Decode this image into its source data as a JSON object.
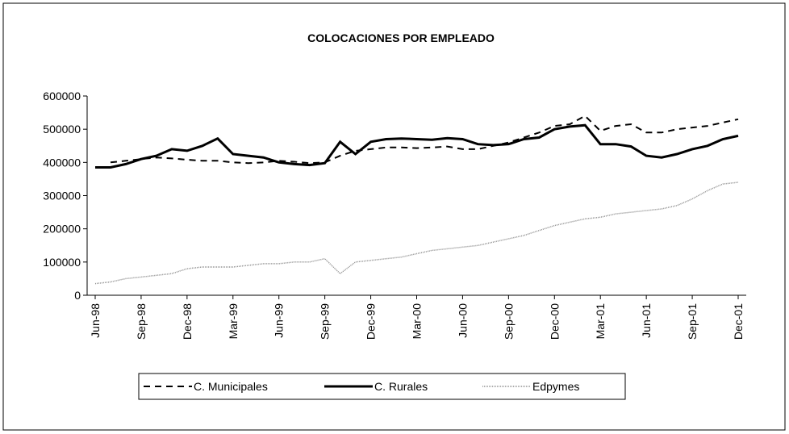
{
  "chart_data": {
    "type": "line",
    "title": "COLOCACIONES POR EMPLEADO",
    "categories": [
      "Jun-98",
      null,
      null,
      "Sep-98",
      null,
      null,
      "Dec-98",
      null,
      null,
      "Mar-99",
      null,
      null,
      "Jun-99",
      null,
      null,
      "Sep-99",
      null,
      null,
      "Dec-99",
      null,
      null,
      "Mar-00",
      null,
      null,
      "Jun-00",
      null,
      null,
      "Sep-00",
      null,
      null,
      "Dec-00",
      null,
      null,
      "Mar-01",
      null,
      null,
      "Jun-01",
      null,
      null,
      "Sep-01",
      null,
      null,
      "Dec-01"
    ],
    "series": [
      {
        "name": "C. Municipales",
        "color": "#000000",
        "style": "dashed",
        "values": [
          null,
          400000,
          405000,
          410000,
          415000,
          412000,
          408000,
          405000,
          405000,
          400000,
          398000,
          400000,
          405000,
          402000,
          398000,
          400000,
          420000,
          435000,
          440000,
          445000,
          445000,
          443000,
          445000,
          448000,
          440000,
          440000,
          450000,
          460000,
          475000,
          490000,
          510000,
          515000,
          540000,
          495000,
          510000,
          515000,
          490000,
          490000,
          500000,
          505000,
          510000,
          520000,
          530000
        ]
      },
      {
        "name": "C. Rurales",
        "color": "#000000",
        "style": "solid",
        "values": [
          385000,
          385000,
          395000,
          410000,
          420000,
          440000,
          435000,
          450000,
          472000,
          425000,
          420000,
          415000,
          400000,
          395000,
          392000,
          398000,
          462000,
          425000,
          462000,
          470000,
          472000,
          470000,
          468000,
          473000,
          470000,
          455000,
          452000,
          455000,
          470000,
          475000,
          500000,
          508000,
          512000,
          455000,
          455000,
          448000,
          420000,
          415000,
          425000,
          440000,
          450000,
          470000,
          480000
        ]
      },
      {
        "name": "Edpymes",
        "color": "#909090",
        "style": "dotted",
        "values": [
          35000,
          40000,
          50000,
          55000,
          60000,
          65000,
          80000,
          85000,
          85000,
          85000,
          90000,
          95000,
          95000,
          100000,
          100000,
          110000,
          65000,
          100000,
          105000,
          110000,
          115000,
          125000,
          135000,
          140000,
          145000,
          150000,
          160000,
          170000,
          180000,
          195000,
          210000,
          220000,
          230000,
          235000,
          245000,
          250000,
          255000,
          260000,
          270000,
          290000,
          315000,
          335000,
          340000
        ]
      }
    ],
    "ylim": [
      0,
      600000
    ],
    "yticks": [
      0,
      100000,
      200000,
      300000,
      400000,
      500000,
      600000
    ],
    "grid": false,
    "legend": "bottom"
  }
}
